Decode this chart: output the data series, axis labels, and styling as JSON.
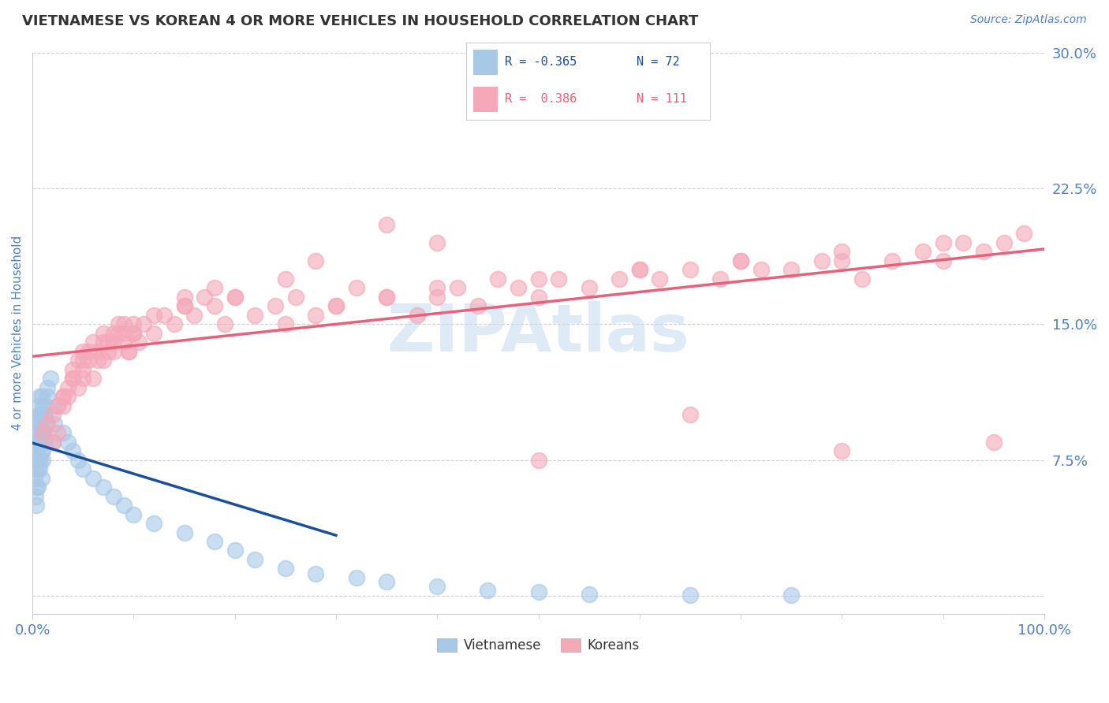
{
  "title": "VIETNAMESE VS KOREAN 4 OR MORE VEHICLES IN HOUSEHOLD CORRELATION CHART",
  "source_text": "Source: ZipAtlas.com",
  "ylabel": "4 or more Vehicles in Household",
  "xlim": [
    0.0,
    100.0
  ],
  "ylim": [
    -1.0,
    30.0
  ],
  "yticks": [
    0.0,
    7.5,
    15.0,
    22.5,
    30.0
  ],
  "ytick_labels": [
    "",
    "7.5%",
    "15.0%",
    "22.5%",
    "30.0%"
  ],
  "xtick_labels": [
    "0.0%",
    "100.0%"
  ],
  "color_vietnamese": "#a8c8e8",
  "color_koreans": "#f4a8b8",
  "color_line_vietnamese": "#1a4f9c",
  "color_line_koreans": "#e8607a",
  "watermark_color": "#c8ddf0",
  "background_color": "#ffffff",
  "grid_color": "#d0d0d0",
  "title_color": "#333333",
  "axis_label_color": "#5080c0",
  "tick_label_color": "#5080c0",
  "vietnamese_x": [
    0.1,
    0.2,
    0.3,
    0.4,
    0.5,
    0.6,
    0.7,
    0.8,
    0.9,
    1.0,
    0.2,
    0.3,
    0.4,
    0.5,
    0.6,
    0.7,
    0.8,
    0.9,
    1.0,
    1.1,
    0.3,
    0.4,
    0.5,
    0.6,
    0.7,
    0.8,
    0.9,
    1.0,
    1.2,
    1.3,
    0.4,
    0.5,
    0.6,
    0.7,
    0.8,
    0.9,
    1.0,
    1.1,
    1.3,
    1.5,
    1.0,
    1.2,
    1.5,
    1.8,
    2.0,
    2.2,
    2.5,
    3.0,
    3.5,
    4.0,
    4.5,
    5.0,
    6.0,
    7.0,
    8.0,
    9.0,
    10.0,
    12.0,
    15.0,
    18.0,
    20.0,
    22.0,
    25.0,
    28.0,
    32.0,
    35.0,
    40.0,
    45.0,
    50.0,
    55.0,
    65.0,
    75.0
  ],
  "vietnamese_y": [
    8.5,
    9.0,
    7.5,
    8.0,
    9.5,
    10.0,
    7.0,
    8.5,
    9.0,
    10.5,
    6.5,
    7.0,
    8.0,
    9.5,
    10.5,
    11.0,
    7.5,
    8.0,
    9.0,
    10.0,
    5.5,
    6.0,
    7.0,
    8.5,
    9.5,
    10.0,
    6.5,
    7.5,
    8.5,
    9.5,
    5.0,
    6.0,
    7.5,
    9.0,
    10.0,
    11.0,
    8.0,
    9.0,
    10.5,
    11.5,
    9.0,
    10.0,
    11.0,
    12.0,
    8.5,
    9.5,
    10.5,
    9.0,
    8.5,
    8.0,
    7.5,
    7.0,
    6.5,
    6.0,
    5.5,
    5.0,
    4.5,
    4.0,
    3.5,
    3.0,
    2.5,
    2.0,
    1.5,
    1.2,
    1.0,
    0.8,
    0.5,
    0.3,
    0.2,
    0.1,
    0.05,
    0.02
  ],
  "koreans_x": [
    1.0,
    1.5,
    2.0,
    2.5,
    3.0,
    3.5,
    4.0,
    4.5,
    5.0,
    5.5,
    6.0,
    6.5,
    7.0,
    7.5,
    8.0,
    8.5,
    9.0,
    9.5,
    10.0,
    10.5,
    2.0,
    2.5,
    3.0,
    3.5,
    4.0,
    4.5,
    5.0,
    5.5,
    6.0,
    6.5,
    7.0,
    7.5,
    8.0,
    8.5,
    9.0,
    9.5,
    10.0,
    11.0,
    12.0,
    13.0,
    14.0,
    15.0,
    16.0,
    17.0,
    18.0,
    19.0,
    20.0,
    22.0,
    24.0,
    26.0,
    28.0,
    30.0,
    32.0,
    35.0,
    38.0,
    40.0,
    42.0,
    44.0,
    46.0,
    48.0,
    50.0,
    52.0,
    55.0,
    58.0,
    60.0,
    62.0,
    65.0,
    68.0,
    70.0,
    72.0,
    75.0,
    78.0,
    80.0,
    82.0,
    85.0,
    88.0,
    90.0,
    92.0,
    94.0,
    96.0,
    98.0,
    3.0,
    5.0,
    7.0,
    9.0,
    12.0,
    15.0,
    20.0,
    25.0,
    30.0,
    35.0,
    40.0,
    50.0,
    60.0,
    70.0,
    80.0,
    90.0,
    4.0,
    8.0,
    15.0,
    25.0,
    35.0,
    50.0,
    65.0,
    80.0,
    95.0,
    5.0,
    10.0,
    18.0,
    28.0,
    40.0
  ],
  "koreans_y": [
    9.0,
    9.5,
    10.0,
    10.5,
    11.0,
    11.5,
    12.0,
    11.5,
    12.5,
    13.0,
    12.0,
    13.5,
    13.0,
    14.0,
    13.5,
    14.5,
    14.0,
    13.5,
    14.5,
    14.0,
    8.5,
    9.0,
    10.5,
    11.0,
    12.5,
    13.0,
    12.0,
    13.5,
    14.0,
    13.0,
    14.5,
    13.5,
    14.0,
    15.0,
    14.5,
    13.5,
    14.5,
    15.0,
    14.5,
    15.5,
    15.0,
    16.0,
    15.5,
    16.5,
    16.0,
    15.0,
    16.5,
    15.5,
    16.0,
    16.5,
    15.5,
    16.0,
    17.0,
    16.5,
    15.5,
    16.5,
    17.0,
    16.0,
    17.5,
    17.0,
    16.5,
    17.5,
    17.0,
    17.5,
    18.0,
    17.5,
    18.0,
    17.5,
    18.5,
    18.0,
    18.0,
    18.5,
    18.5,
    17.5,
    18.5,
    19.0,
    18.5,
    19.5,
    19.0,
    19.5,
    20.0,
    11.0,
    13.0,
    14.0,
    15.0,
    15.5,
    16.0,
    16.5,
    15.0,
    16.0,
    16.5,
    17.0,
    17.5,
    18.0,
    18.5,
    19.0,
    19.5,
    12.0,
    14.5,
    16.5,
    17.5,
    20.5,
    7.5,
    10.0,
    8.0,
    8.5,
    13.5,
    15.0,
    17.0,
    18.5,
    19.5
  ]
}
